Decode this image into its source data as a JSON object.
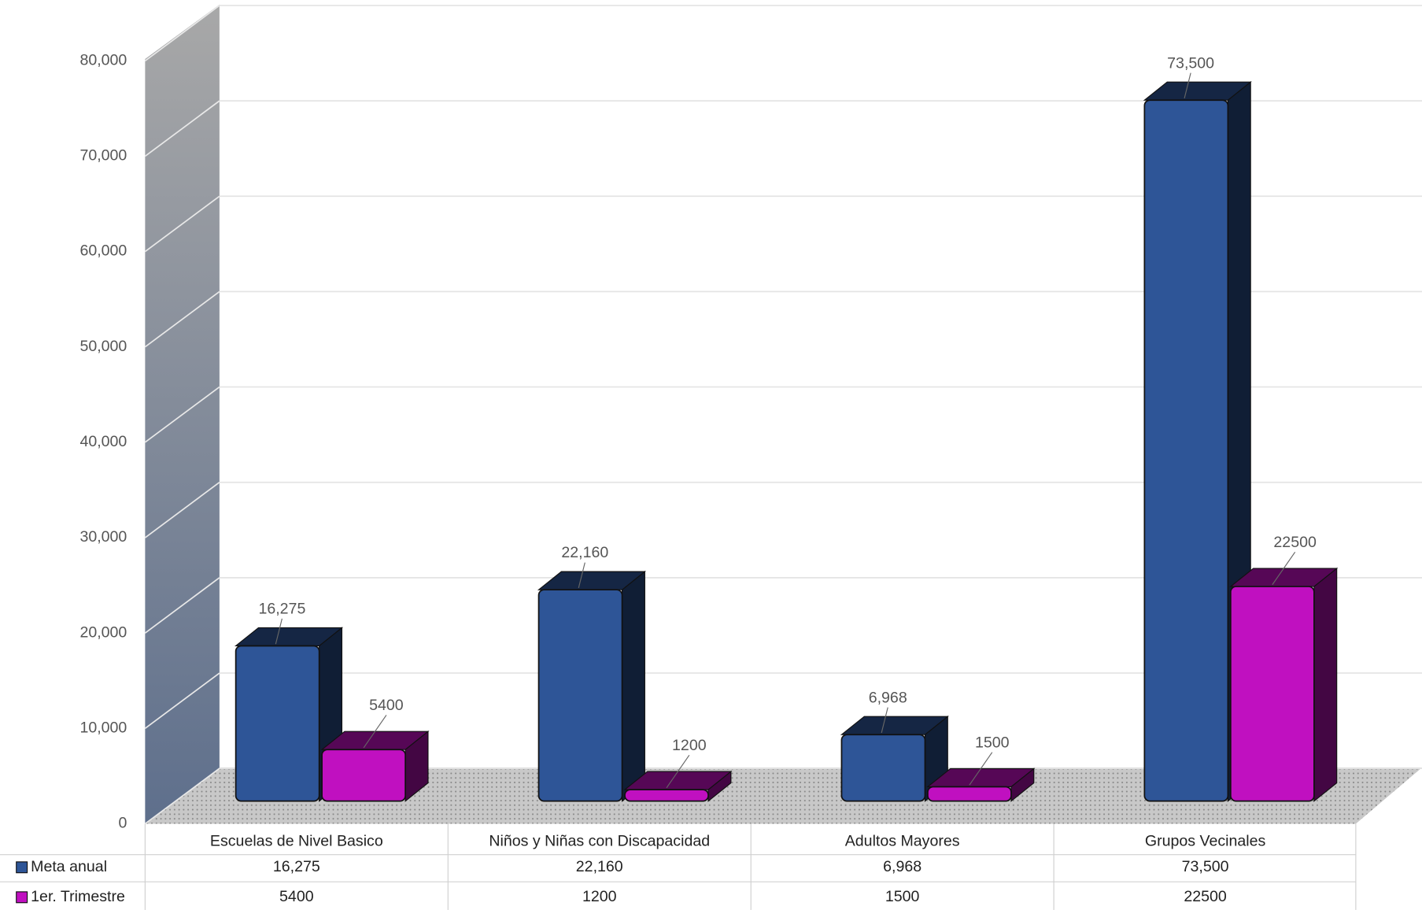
{
  "chart_data": {
    "type": "bar",
    "categories": [
      "Escuelas de Nivel Basico",
      "Niños y Niñas con Discapacidad",
      "Adultos Mayores",
      "Grupos Vecinales"
    ],
    "series": [
      {
        "name": "Meta anual",
        "color": "#2e5597",
        "values": [
          16275,
          22160,
          6968,
          73500
        ],
        "value_labels": [
          "16,275",
          "22,160",
          "6,968",
          "73,500"
        ]
      },
      {
        "name": "1er. Trimestre",
        "color": "#c010c0",
        "values": [
          5400,
          1200,
          1500,
          22500
        ]
      }
    ],
    "ylim": [
      0,
      80000
    ],
    "yticks": [
      0,
      {
        "value": 10000,
        "label": "10,000"
      },
      {
        "value": 20000,
        "label": "20,000"
      },
      {
        "value": 30000,
        "label": "30,000"
      },
      {
        "value": 40000,
        "label": "40,000"
      },
      {
        "value": 50000,
        "label": "50,000"
      },
      {
        "value": 60000,
        "label": "60,000"
      },
      {
        "value": 70000,
        "label": "70,000"
      },
      {
        "value": 80000,
        "label": "80,000"
      }
    ],
    "grid": true,
    "data_table": true
  }
}
